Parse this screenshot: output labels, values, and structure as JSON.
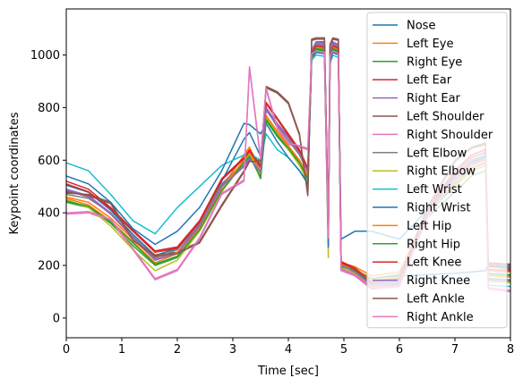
{
  "chart_data": {
    "type": "line",
    "title": "",
    "xlabel": "Time [sec]",
    "ylabel": "Keypoint coordinates",
    "xlim": [
      0,
      8
    ],
    "ylim": [
      -75,
      1175
    ],
    "xticks": [
      0,
      1,
      2,
      3,
      4,
      5,
      6,
      7,
      8
    ],
    "yticks": [
      0,
      200,
      400,
      600,
      800,
      1000
    ],
    "grid": false,
    "legend_position": "top-right",
    "series": [
      {
        "name": "Nose",
        "color": "#1f77b4",
        "x": [
          0,
          0.4,
          0.8,
          1.2,
          1.6,
          2.0,
          2.4,
          2.8,
          3.2,
          3.3,
          3.5,
          3.6,
          3.8,
          4.0,
          4.2,
          4.35,
          4.42,
          4.5,
          4.65,
          4.72,
          4.75,
          4.8,
          4.9,
          4.95,
          5.2,
          5.5,
          6.0,
          6.5,
          7.0,
          7.3,
          7.55,
          7.6,
          8.0
        ],
        "y": [
          505,
          478,
          410,
          318,
          238,
          265,
          362,
          520,
          680,
          705,
          615,
          800,
          725,
          650,
          590,
          520,
          990,
          1050,
          1050,
          345,
          980,
          1050,
          1030,
          200,
          180,
          150,
          160,
          165,
          170,
          175,
          180,
          200,
          185
        ]
      },
      {
        "name": "Left Eye",
        "color": "#ff7f0e",
        "x": [
          0,
          0.4,
          0.8,
          1.2,
          1.6,
          2.0,
          2.4,
          2.8,
          3.2,
          3.3,
          3.5,
          3.6,
          3.8,
          4.0,
          4.2,
          4.35,
          4.42,
          4.5,
          4.65,
          4.72,
          4.75,
          4.8,
          4.9,
          4.95,
          5.2,
          5.5,
          6.0,
          6.5,
          7.0,
          7.3,
          7.55,
          7.6,
          8.0
        ],
        "y": [
          455,
          430,
          370,
          290,
          210,
          245,
          340,
          495,
          620,
          650,
          550,
          770,
          705,
          650,
          600,
          545,
          1000,
          1030,
          1025,
          310,
          990,
          1030,
          1020,
          210,
          195,
          160,
          175,
          400,
          500,
          560,
          580,
          180,
          175
        ]
      },
      {
        "name": "Right Eye",
        "color": "#2ca02c",
        "x": [
          0,
          0.4,
          0.8,
          1.2,
          1.6,
          2.0,
          2.4,
          2.8,
          3.2,
          3.3,
          3.5,
          3.6,
          3.8,
          4.0,
          4.2,
          4.35,
          4.42,
          4.5,
          4.65,
          4.72,
          4.75,
          4.8,
          4.9,
          4.95,
          5.2,
          5.5,
          6.0,
          6.5,
          7.0,
          7.3,
          7.55,
          7.6,
          8.0
        ],
        "y": [
          440,
          420,
          360,
          275,
          200,
          230,
          330,
          480,
          600,
          625,
          530,
          750,
          690,
          640,
          590,
          530,
          990,
          1020,
          1015,
          300,
          980,
          1020,
          1010,
          200,
          185,
          150,
          165,
          380,
          480,
          540,
          560,
          170,
          165
        ]
      },
      {
        "name": "Left Ear",
        "color": "#d62728",
        "x": [
          0,
          0.4,
          0.8,
          1.2,
          1.6,
          2.0,
          2.4,
          2.8,
          3.2,
          3.3,
          3.5,
          3.6,
          3.8,
          4.0,
          4.2,
          4.35,
          4.42,
          4.5,
          4.65,
          4.72,
          4.75,
          4.8,
          4.9,
          4.95,
          5.2,
          5.5,
          6.0,
          6.5,
          7.0,
          7.3,
          7.55,
          7.6,
          8.0
        ],
        "y": [
          520,
          490,
          420,
          335,
          255,
          270,
          370,
          530,
          610,
          640,
          580,
          820,
          760,
          700,
          640,
          570,
          1010,
          1035,
          1030,
          330,
          1000,
          1035,
          1025,
          215,
          190,
          140,
          150,
          420,
          560,
          620,
          640,
          195,
          190
        ]
      },
      {
        "name": "Right Ear",
        "color": "#9467bd",
        "x": [
          0,
          0.4,
          0.8,
          1.2,
          1.6,
          2.0,
          2.4,
          2.8,
          3.2,
          3.3,
          3.5,
          3.6,
          3.8,
          4.0,
          4.2,
          4.35,
          4.42,
          4.5,
          4.65,
          4.72,
          4.75,
          4.8,
          4.9,
          4.95,
          5.2,
          5.5,
          6.0,
          6.5,
          7.0,
          7.3,
          7.55,
          7.6,
          8.0
        ],
        "y": [
          490,
          465,
          400,
          310,
          225,
          250,
          355,
          505,
          580,
          610,
          560,
          800,
          740,
          690,
          630,
          560,
          1020,
          1050,
          1045,
          320,
          1010,
          1050,
          1040,
          205,
          180,
          130,
          140,
          400,
          540,
          600,
          620,
          150,
          145
        ]
      },
      {
        "name": "Left Shoulder",
        "color": "#8c564b",
        "x": [
          0,
          0.4,
          0.8,
          1.2,
          1.6,
          2.0,
          2.4,
          2.8,
          3.2,
          3.3,
          3.5,
          3.6,
          3.8,
          4.0,
          4.2,
          4.35,
          4.42,
          4.5,
          4.65,
          4.72,
          4.75,
          4.8,
          4.9,
          4.95,
          5.2,
          5.5,
          6.0,
          6.5,
          7.0,
          7.3,
          7.55,
          7.6,
          8.0
        ],
        "y": [
          475,
          470,
          440,
          300,
          240,
          250,
          290,
          430,
          560,
          600,
          600,
          880,
          860,
          820,
          700,
          470,
          1060,
          1065,
          1065,
          360,
          1040,
          1065,
          1060,
          190,
          170,
          120,
          130,
          420,
          600,
          650,
          665,
          210,
          205
        ]
      },
      {
        "name": "Right Shoulder",
        "color": "#e377c2",
        "x": [
          0,
          0.4,
          0.8,
          1.2,
          1.6,
          2.0,
          2.4,
          2.8,
          3.2,
          3.3,
          3.5,
          3.6,
          3.8,
          4.0,
          4.2,
          4.35,
          4.42,
          4.5,
          4.65,
          4.72,
          4.75,
          4.8,
          4.9,
          4.95,
          5.2,
          5.5,
          6.0,
          6.5,
          7.0,
          7.3,
          7.55,
          7.6,
          8.0
        ],
        "y": [
          395,
          400,
          370,
          260,
          145,
          180,
          300,
          470,
          520,
          950,
          600,
          870,
          720,
          660,
          650,
          640,
          1000,
          1010,
          1005,
          300,
          990,
          1010,
          1000,
          180,
          160,
          110,
          120,
          380,
          520,
          580,
          600,
          110,
          100
        ]
      },
      {
        "name": "Left Elbow",
        "color": "#7f7f7f",
        "x": [
          0,
          0.4,
          0.8,
          1.2,
          1.6,
          2.0,
          2.4,
          2.8,
          3.2,
          3.3,
          3.5,
          3.6,
          3.8,
          4.0,
          4.2,
          4.35,
          4.42,
          4.5,
          4.65,
          4.72,
          4.75,
          4.8,
          4.9,
          4.95,
          5.2,
          5.5,
          6.0,
          6.5,
          7.0,
          7.3,
          7.55,
          7.6,
          8.0
        ],
        "y": [
          470,
          455,
          400,
          310,
          230,
          260,
          360,
          510,
          590,
          620,
          570,
          790,
          730,
          675,
          620,
          555,
          1005,
          1040,
          1035,
          310,
          995,
          1040,
          1030,
          200,
          175,
          130,
          145,
          400,
          530,
          590,
          610,
          165,
          160
        ]
      },
      {
        "name": "Right Elbow",
        "color": "#bcbd22",
        "x": [
          0,
          0.4,
          0.8,
          1.2,
          1.6,
          2.0,
          2.4,
          2.8,
          3.2,
          3.3,
          3.5,
          3.6,
          3.8,
          4.0,
          4.2,
          4.35,
          4.42,
          4.5,
          4.65,
          4.72,
          4.75,
          4.8,
          4.9,
          4.95,
          5.2,
          5.5,
          6.0,
          6.5,
          7.0,
          7.3,
          7.55,
          7.6,
          8.0
        ],
        "y": [
          450,
          420,
          350,
          260,
          180,
          220,
          330,
          480,
          590,
          620,
          540,
          760,
          700,
          640,
          580,
          520,
          980,
          1010,
          1005,
          230,
          970,
          1010,
          1000,
          190,
          170,
          120,
          135,
          390,
          510,
          570,
          590,
          140,
          135
        ]
      },
      {
        "name": "Left Wrist",
        "color": "#17becf",
        "x": [
          0,
          0.4,
          0.8,
          1.2,
          1.6,
          2.0,
          2.4,
          2.8,
          3.2,
          3.3,
          3.5,
          3.6,
          3.8,
          4.0,
          4.2,
          4.35,
          4.42,
          4.5,
          4.65,
          4.72,
          4.75,
          4.8,
          4.9,
          4.95,
          5.2,
          5.5,
          6.0,
          6.5,
          7.0,
          7.3,
          7.55,
          7.6,
          8.0
        ],
        "y": [
          590,
          560,
          470,
          370,
          320,
          420,
          500,
          580,
          620,
          625,
          600,
          700,
          640,
          610,
          560,
          520,
          980,
          1000,
          995,
          290,
          965,
          1000,
          990,
          200,
          180,
          130,
          150,
          390,
          530,
          600,
          620,
          125,
          120
        ]
      },
      {
        "name": "Right Wrist",
        "color": "#1f77b4",
        "x": [
          0,
          0.4,
          0.8,
          1.2,
          1.6,
          2.0,
          2.4,
          2.8,
          3.2,
          3.3,
          3.5,
          3.6,
          3.8,
          4.0,
          4.2,
          4.35,
          4.42,
          4.5,
          4.65,
          4.72,
          4.75,
          4.8,
          4.9,
          4.95,
          5.2,
          5.5,
          6.0,
          6.5,
          7.0,
          7.3,
          7.55,
          7.6,
          8.0
        ],
        "y": [
          540,
          510,
          440,
          340,
          280,
          330,
          420,
          560,
          740,
          735,
          700,
          740,
          670,
          610,
          560,
          510,
          990,
          1010,
          1005,
          270,
          975,
          1010,
          1000,
          300,
          330,
          330,
          300,
          410,
          540,
          590,
          610,
          200,
          195
        ]
      },
      {
        "name": "Left Hip",
        "color": "#ff7f0e",
        "x": [
          0,
          0.4,
          0.8,
          1.2,
          1.6,
          2.0,
          2.4,
          2.8,
          3.2,
          3.3,
          3.5,
          3.6,
          3.8,
          4.0,
          4.2,
          4.35,
          4.42,
          4.5,
          4.65,
          4.72,
          4.75,
          4.8,
          4.9,
          4.95,
          5.2,
          5.5,
          6.0,
          6.5,
          7.0,
          7.3,
          7.55,
          7.6,
          8.0
        ],
        "y": [
          460,
          440,
          380,
          300,
          220,
          250,
          345,
          495,
          600,
          630,
          555,
          770,
          710,
          655,
          600,
          540,
          1000,
          1030,
          1025,
          305,
          985,
          1030,
          1020,
          205,
          185,
          140,
          155,
          400,
          520,
          580,
          600,
          160,
          155
        ]
      },
      {
        "name": "Right Hip",
        "color": "#2ca02c",
        "x": [
          0,
          0.4,
          0.8,
          1.2,
          1.6,
          2.0,
          2.4,
          2.8,
          3.2,
          3.3,
          3.5,
          3.6,
          3.8,
          4.0,
          4.2,
          4.35,
          4.42,
          4.5,
          4.65,
          4.72,
          4.75,
          4.8,
          4.9,
          4.95,
          5.2,
          5.5,
          6.0,
          6.5,
          7.0,
          7.3,
          7.55,
          7.6,
          8.0
        ],
        "y": [
          445,
          425,
          365,
          285,
          205,
          235,
          335,
          485,
          590,
          615,
          535,
          755,
          695,
          645,
          590,
          530,
          995,
          1025,
          1020,
          300,
          980,
          1025,
          1015,
          195,
          180,
          135,
          150,
          390,
          510,
          570,
          590,
          150,
          145
        ]
      },
      {
        "name": "Left Knee",
        "color": "#d62728",
        "x": [
          0,
          0.4,
          0.8,
          1.2,
          1.6,
          2.0,
          2.4,
          2.8,
          3.2,
          3.3,
          3.5,
          3.6,
          3.8,
          4.0,
          4.2,
          4.35,
          4.42,
          4.5,
          4.65,
          4.72,
          4.75,
          4.8,
          4.9,
          4.95,
          5.2,
          5.5,
          6.0,
          6.5,
          7.0,
          7.3,
          7.55,
          7.6,
          8.0
        ],
        "y": [
          510,
          480,
          415,
          330,
          250,
          265,
          365,
          525,
          605,
          635,
          575,
          815,
          755,
          695,
          635,
          565,
          1005,
          1035,
          1030,
          325,
          995,
          1035,
          1025,
          210,
          185,
          135,
          150,
          410,
          550,
          610,
          630,
          185,
          180
        ]
      },
      {
        "name": "Right Knee",
        "color": "#9467bd",
        "x": [
          0,
          0.4,
          0.8,
          1.2,
          1.6,
          2.0,
          2.4,
          2.8,
          3.2,
          3.3,
          3.5,
          3.6,
          3.8,
          4.0,
          4.2,
          4.35,
          4.42,
          4.5,
          4.65,
          4.72,
          4.75,
          4.8,
          4.9,
          4.95,
          5.2,
          5.5,
          6.0,
          6.5,
          7.0,
          7.3,
          7.55,
          7.6,
          8.0
        ],
        "y": [
          485,
          460,
          395,
          305,
          220,
          245,
          350,
          500,
          575,
          605,
          555,
          795,
          735,
          685,
          625,
          555,
          1015,
          1045,
          1040,
          315,
          1005,
          1045,
          1035,
          200,
          175,
          125,
          135,
          395,
          535,
          595,
          615,
          145,
          140
        ]
      },
      {
        "name": "Left Ankle",
        "color": "#8c564b",
        "x": [
          0,
          0.4,
          0.8,
          1.2,
          1.6,
          2.0,
          2.4,
          2.8,
          3.2,
          3.3,
          3.5,
          3.6,
          3.8,
          4.0,
          4.2,
          4.35,
          4.42,
          4.5,
          4.65,
          4.72,
          4.75,
          4.8,
          4.9,
          4.95,
          5.2,
          5.5,
          6.0,
          6.5,
          7.0,
          7.3,
          7.55,
          7.6,
          8.0
        ],
        "y": [
          480,
          465,
          435,
          295,
          235,
          245,
          285,
          425,
          555,
          595,
          595,
          875,
          855,
          815,
          695,
          465,
          1055,
          1060,
          1060,
          355,
          1035,
          1060,
          1055,
          185,
          165,
          115,
          125,
          415,
          595,
          645,
          660,
          205,
          200
        ]
      },
      {
        "name": "Right Ankle",
        "color": "#e377c2",
        "x": [
          0,
          0.4,
          0.8,
          1.2,
          1.6,
          2.0,
          2.4,
          2.8,
          3.2,
          3.3,
          3.5,
          3.6,
          3.8,
          4.0,
          4.2,
          4.35,
          4.42,
          4.5,
          4.65,
          4.72,
          4.75,
          4.8,
          4.9,
          4.95,
          5.2,
          5.5,
          6.0,
          6.5,
          7.0,
          7.3,
          7.55,
          7.6,
          8.0
        ],
        "y": [
          400,
          405,
          375,
          265,
          150,
          185,
          305,
          475,
          525,
          955,
          605,
          875,
          725,
          665,
          655,
          645,
          1005,
          1015,
          1010,
          305,
          995,
          1015,
          1005,
          185,
          165,
          115,
          125,
          385,
          525,
          585,
          605,
          115,
          105
        ]
      }
    ]
  }
}
